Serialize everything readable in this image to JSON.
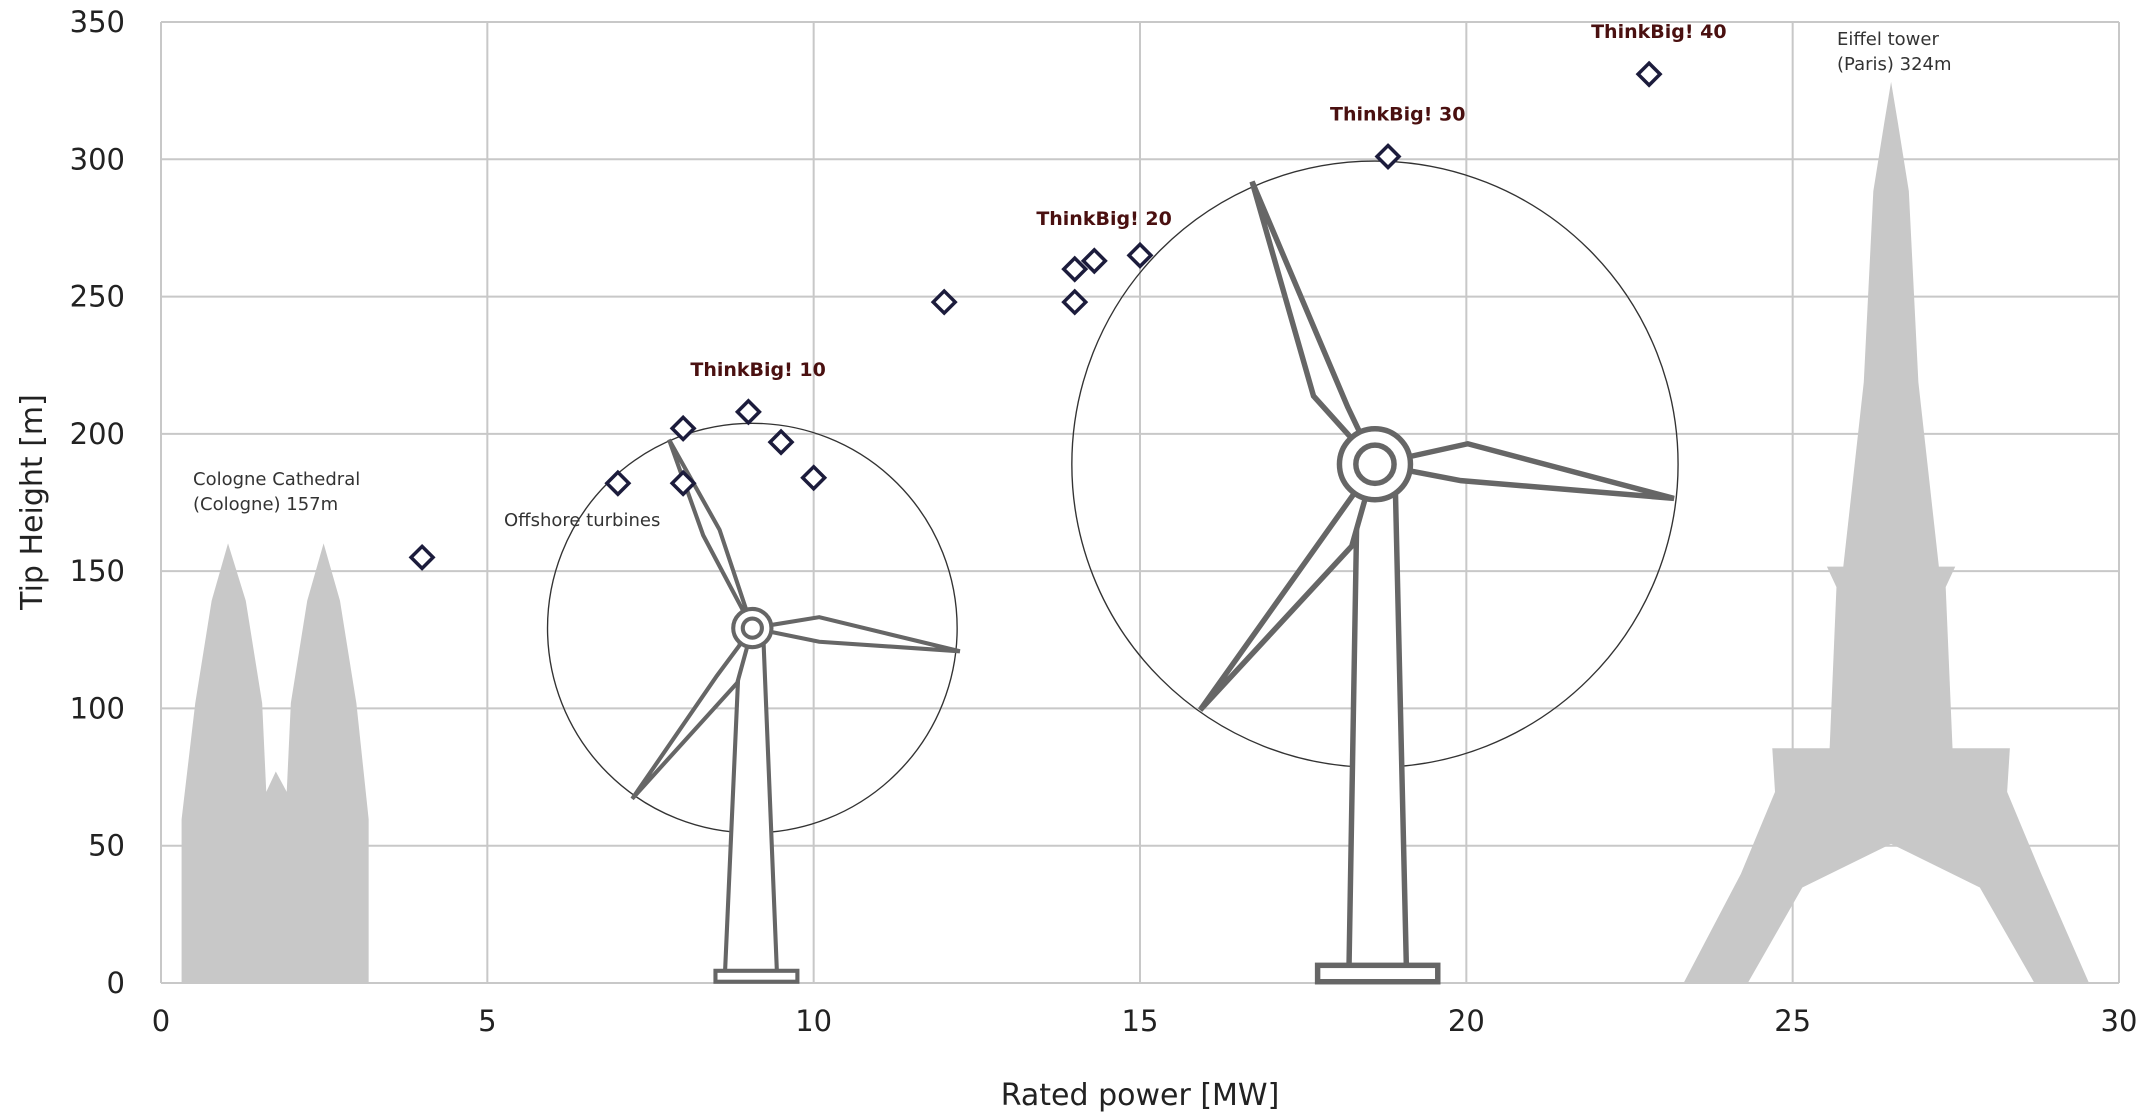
{
  "chart_data": {
    "type": "scatter",
    "x_label": "Rated power [MW]",
    "y_label": "Tip Height [m]",
    "x": [
      4,
      7,
      8,
      8,
      9,
      9.5,
      10,
      12,
      14,
      14,
      14.3,
      15,
      18.8,
      22.8
    ],
    "values": [
      155,
      182,
      182,
      202,
      208,
      197,
      184,
      248,
      248,
      260,
      263,
      265,
      301,
      331
    ],
    "point_labels": [
      null,
      null,
      null,
      null,
      "ThinkBig! 10",
      null,
      null,
      null,
      null,
      null,
      "ThinkBig! 20",
      null,
      "ThinkBig! 30",
      "ThinkBig! 40"
    ],
    "color": "#1c1c3c",
    "label_color": "#4a1010",
    "xlim": [
      0,
      30
    ],
    "xticks": [
      0,
      5,
      10,
      15,
      20,
      25,
      30
    ],
    "ylim": [
      0,
      350
    ],
    "yticks": [
      0,
      50,
      100,
      150,
      200,
      250,
      300,
      350
    ],
    "grid": true,
    "annotations": [
      [
        "Cologne Cathedral",
        "(Cologne) 157m"
      ],
      [
        "Offshore turbines"
      ],
      [
        "Eiffel tower",
        "(Paris) 324m"
      ]
    ]
  }
}
